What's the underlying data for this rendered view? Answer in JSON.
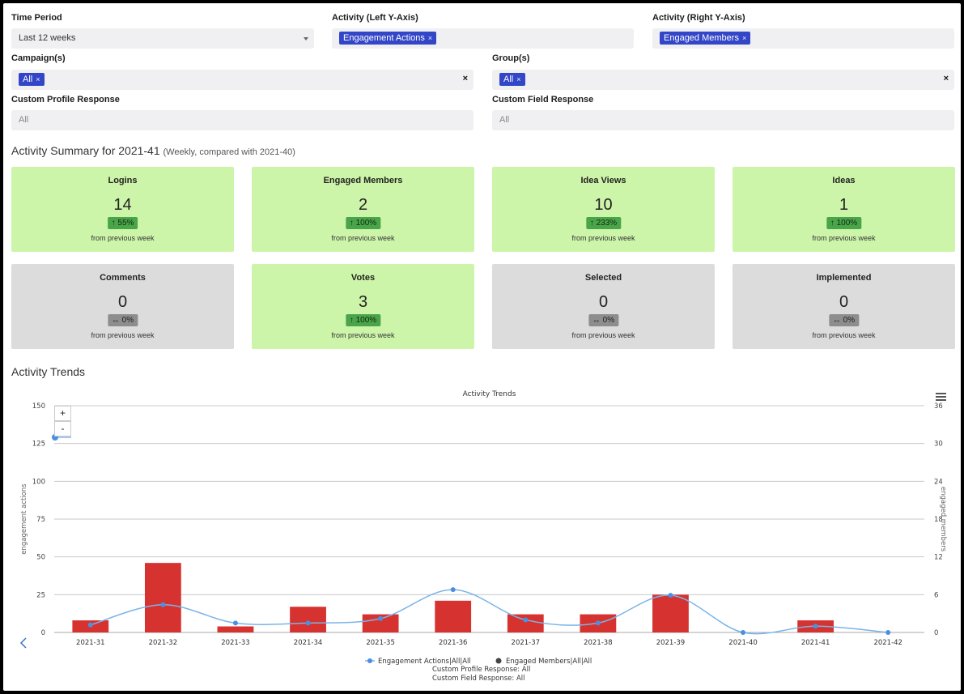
{
  "filters": {
    "time_period": {
      "label": "Time Period",
      "value": "Last 12 weeks"
    },
    "left_axis": {
      "label": "Activity (Left Y-Axis)",
      "tag": "Engagement Actions"
    },
    "right_axis": {
      "label": "Activity (Right Y-Axis)",
      "tag": "Engaged Members"
    },
    "campaigns": {
      "label": "Campaign(s)",
      "tag": "All"
    },
    "groups": {
      "label": "Group(s)",
      "tag": "All"
    },
    "custom_profile": {
      "label": "Custom Profile Response",
      "placeholder": "All"
    },
    "custom_field": {
      "label": "Custom Field Response",
      "placeholder": "All"
    },
    "remove_glyph": "×",
    "clear_glyph": "×"
  },
  "summary": {
    "title": "Activity Summary for 2021-41",
    "subtitle": "(Weekly, compared with 2021-40)",
    "cards": [
      {
        "title": "Logins",
        "value": "14",
        "change": "↑ 55%",
        "note": "from previous week",
        "status": "up"
      },
      {
        "title": "Engaged Members",
        "value": "2",
        "change": "↑ 100%",
        "note": "from previous week",
        "status": "up"
      },
      {
        "title": "Idea Views",
        "value": "10",
        "change": "↑ 233%",
        "note": "from previous week",
        "status": "up"
      },
      {
        "title": "Ideas",
        "value": "1",
        "change": "↑ 100%",
        "note": "from previous week",
        "status": "up"
      },
      {
        "title": "Comments",
        "value": "0",
        "change": "↔ 0%",
        "note": "from previous week",
        "status": "flat"
      },
      {
        "title": "Votes",
        "value": "3",
        "change": "↑ 100%",
        "note": "from previous week",
        "status": "up"
      },
      {
        "title": "Selected",
        "value": "0",
        "change": "↔ 0%",
        "note": "from previous week",
        "status": "flat"
      },
      {
        "title": "Implemented",
        "value": "0",
        "change": "↔ 0%",
        "note": "from previous week",
        "status": "flat"
      }
    ]
  },
  "trends": {
    "section_title": "Activity Trends",
    "zoom_in": "+",
    "zoom_out": "-"
  },
  "chart_data": {
    "type": "bar",
    "title": "Activity Trends",
    "categories": [
      "2021-31",
      "2021-32",
      "2021-33",
      "2021-34",
      "2021-35",
      "2021-36",
      "2021-37",
      "2021-38",
      "2021-39",
      "2021-40",
      "2021-41",
      "2021-42"
    ],
    "ylabel": "engagement actions",
    "y2label": "engaged members",
    "ylim": [
      0,
      150
    ],
    "y2lim": [
      0,
      36
    ],
    "yticks": [
      "0",
      "25",
      "50",
      "75",
      "100",
      "125",
      "150"
    ],
    "y2ticks": [
      "0",
      "6",
      "12",
      "18",
      "24",
      "30",
      "36"
    ],
    "grid": true,
    "series": [
      {
        "name": "Engagement Actions|All|All",
        "type": "bar",
        "axis": "left",
        "color": "#d63330",
        "values": [
          8,
          46,
          4,
          17,
          12,
          21,
          12,
          12,
          25,
          0,
          8,
          0
        ]
      },
      {
        "name": "Engaged Members|All|All",
        "type": "spline",
        "axis": "right",
        "color": "#7ab4e8",
        "values": [
          1.2,
          4.4,
          1.5,
          1.5,
          2.2,
          6.8,
          2.0,
          1.5,
          5.9,
          0,
          1.0,
          0
        ]
      }
    ],
    "legend": {
      "placement": "bottom-center",
      "notes": [
        "Custom Profile Response: All",
        "Custom Field Response: All"
      ]
    }
  }
}
